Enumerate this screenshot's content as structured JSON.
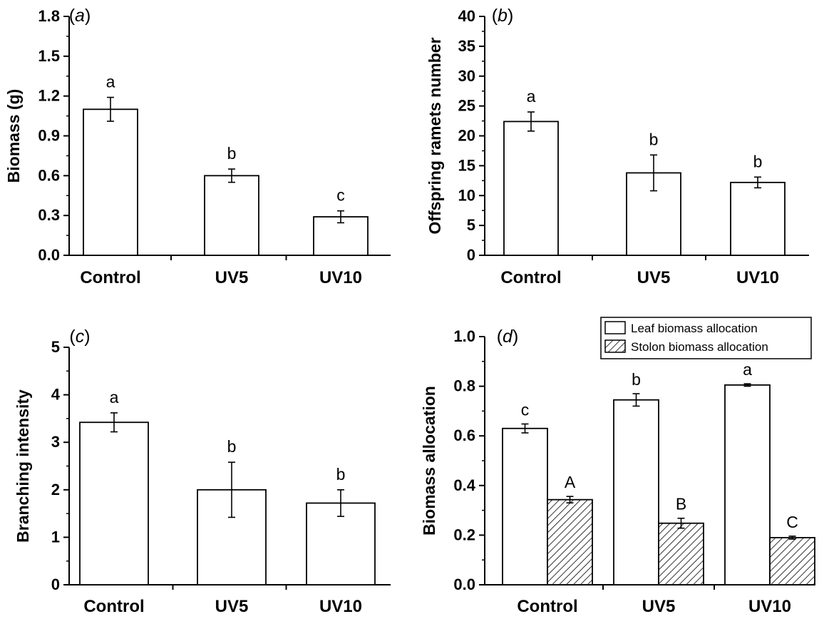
{
  "figure": {
    "panels": [
      "a",
      "b",
      "c",
      "d"
    ]
  },
  "chart_data": [
    {
      "type": "bar",
      "panel_label": "a",
      "categories": [
        "Control",
        "UV5",
        "UV10"
      ],
      "values": [
        1.1,
        0.6,
        0.29
      ],
      "errors": [
        0.09,
        0.05,
        0.045
      ],
      "significance": [
        "a",
        "b",
        "c"
      ],
      "ylabel": "Biomass (g)",
      "xlabel": "",
      "ylim": [
        0,
        1.8
      ],
      "yticks": [
        "0.0",
        "0.3",
        "0.6",
        "0.9",
        "1.2",
        "1.5",
        "1.8"
      ],
      "grid": false
    },
    {
      "type": "bar",
      "panel_label": "b",
      "categories": [
        "Control",
        "UV5",
        "UV10"
      ],
      "values": [
        22.4,
        13.8,
        12.2
      ],
      "errors": [
        1.6,
        3.0,
        0.9
      ],
      "significance": [
        "a",
        "b",
        "b"
      ],
      "ylabel": "Offspring ramets number",
      "xlabel": "",
      "ylim": [
        0,
        40
      ],
      "yticks": [
        "0",
        "5",
        "10",
        "15",
        "20",
        "25",
        "30",
        "35",
        "40"
      ],
      "grid": false
    },
    {
      "type": "bar",
      "panel_label": "c",
      "categories": [
        "Control",
        "UV5",
        "UV10"
      ],
      "values": [
        3.42,
        2.0,
        1.72
      ],
      "errors": [
        0.2,
        0.58,
        0.28
      ],
      "significance": [
        "a",
        "b",
        "b"
      ],
      "ylabel": "Branching intensity",
      "xlabel": "",
      "ylim": [
        0,
        5
      ],
      "yticks": [
        "0",
        "1",
        "2",
        "3",
        "4",
        "5"
      ],
      "grid": false
    },
    {
      "type": "bar",
      "panel_label": "d",
      "categories": [
        "Control",
        "UV5",
        "UV10"
      ],
      "series": [
        {
          "name": "Leaf biomass allocation",
          "values": [
            0.63,
            0.745,
            0.805
          ],
          "errors": [
            0.018,
            0.025,
            0.005
          ],
          "significance": [
            "c",
            "b",
            "a"
          ],
          "fill": "#ffffff"
        },
        {
          "name": "Stolon biomass allocation",
          "values": [
            0.343,
            0.248,
            0.19
          ],
          "errors": [
            0.013,
            0.02,
            0.006
          ],
          "significance": [
            "A",
            "B",
            "C"
          ],
          "fill": "hatched"
        }
      ],
      "ylabel": "Biomass allocation",
      "xlabel": "",
      "ylim": [
        0,
        1.0
      ],
      "yticks": [
        "0.0",
        "0.2",
        "0.4",
        "0.6",
        "0.8",
        "1.0"
      ],
      "legend_position": "top-right",
      "grid": false
    }
  ]
}
